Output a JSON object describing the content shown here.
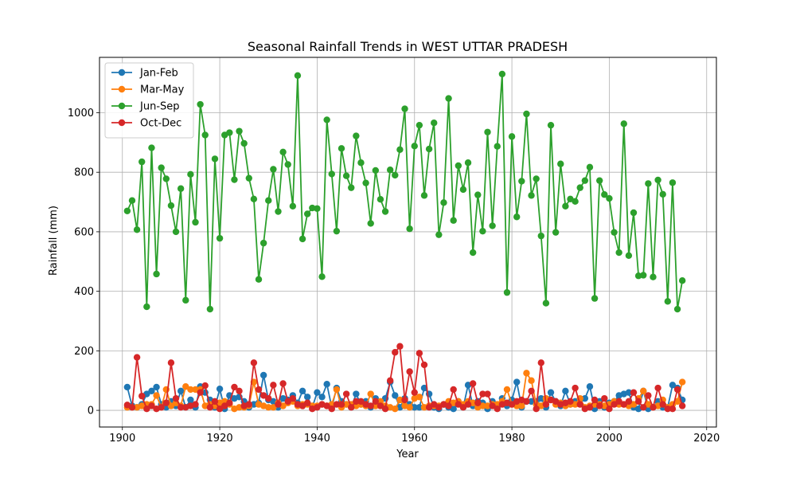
{
  "chart_data": {
    "type": "line",
    "title": "Seasonal Rainfall Trends in WEST UTTAR PRADESH",
    "xlabel": "Year",
    "ylabel": "Rainfall (mm)",
    "xlim": [
      1895.3,
      2022
    ],
    "ylim": [
      -56,
      1186
    ],
    "xticks": [
      1900,
      1920,
      1940,
      1960,
      1980,
      2000,
      2020
    ],
    "yticks": [
      0,
      200,
      400,
      600,
      800,
      1000
    ],
    "grid": true,
    "legend_position": "top-left",
    "x_start": 1901,
    "x_end": 2015,
    "series": [
      {
        "name": "Jan-Feb",
        "color": "#1f77b4",
        "values": [
          78,
          15,
          10,
          20,
          55,
          65,
          78,
          20,
          10,
          30,
          15,
          65,
          10,
          35,
          10,
          80,
          60,
          35,
          10,
          72,
          5,
          50,
          40,
          45,
          30,
          10,
          20,
          25,
          118,
          35,
          30,
          10,
          40,
          35,
          50,
          25,
          65,
          45,
          10,
          60,
          45,
          88,
          10,
          75,
          30,
          20,
          10,
          55,
          20,
          30,
          10,
          40,
          20,
          40,
          95,
          50,
          10,
          40,
          20,
          10,
          10,
          75,
          55,
          10,
          5,
          20,
          10,
          5,
          30,
          10,
          85,
          15,
          30,
          25,
          5,
          30,
          10,
          40,
          15,
          35,
          95,
          10,
          30,
          30,
          30,
          40,
          10,
          60,
          30,
          15,
          65,
          20,
          30,
          35,
          40,
          80,
          5,
          30,
          10,
          25,
          30,
          50,
          55,
          60,
          10,
          5,
          65,
          5,
          10,
          30,
          10,
          10,
          85,
          75,
          35
        ]
      },
      {
        "name": "Mar-May",
        "color": "#ff7f0e",
        "values": [
          10,
          10,
          10,
          15,
          20,
          20,
          50,
          10,
          70,
          15,
          25,
          15,
          80,
          70,
          70,
          70,
          15,
          20,
          15,
          25,
          30,
          20,
          5,
          10,
          10,
          15,
          95,
          20,
          15,
          10,
          10,
          25,
          15,
          25,
          30,
          15,
          20,
          20,
          15,
          15,
          20,
          15,
          20,
          70,
          10,
          20,
          20,
          15,
          20,
          15,
          55,
          15,
          30,
          15,
          10,
          5,
          35,
          15,
          10,
          40,
          45,
          10,
          15,
          15,
          15,
          20,
          30,
          25,
          30,
          20,
          30,
          25,
          10,
          15,
          15,
          20,
          20,
          30,
          70,
          20,
          15,
          15,
          125,
          100,
          20,
          15,
          40,
          35,
          20,
          25,
          15,
          20,
          20,
          40,
          10,
          15,
          20,
          20,
          15,
          20,
          30,
          20,
          20,
          15,
          20,
          40,
          65,
          20,
          10,
          15,
          35,
          10,
          20,
          30,
          95
        ]
      },
      {
        "name": "Jun-Sep",
        "color": "#2ca02c",
        "values": [
          670,
          705,
          607,
          835,
          348,
          882,
          458,
          815,
          778,
          688,
          600,
          745,
          370,
          793,
          632,
          1028,
          925,
          340,
          845,
          578,
          925,
          933,
          775,
          938,
          897,
          780,
          710,
          440,
          562,
          705,
          810,
          668,
          868,
          826,
          686,
          1125,
          576,
          660,
          680,
          678,
          449,
          976,
          794,
          602,
          880,
          788,
          748,
          922,
          832,
          764,
          628,
          806,
          709,
          668,
          808,
          790,
          876,
          1013,
          610,
          888,
          958,
          722,
          878,
          966,
          590,
          698,
          1048,
          638,
          822,
          742,
          832,
          530,
          724,
          602,
          935,
          620,
          887,
          1130,
          396,
          920,
          650,
          770,
          996,
          722,
          778,
          586,
          360,
          958,
          598,
          828,
          686,
          710,
          702,
          748,
          772,
          817,
          376,
          772,
          725,
          712,
          598,
          530,
          963,
          520,
          664,
          452,
          454,
          762,
          448,
          774,
          726,
          366,
          765,
          340,
          436
        ]
      },
      {
        "name": "Oct-Dec",
        "color": "#d62728",
        "values": [
          18,
          10,
          178,
          48,
          5,
          15,
          5,
          10,
          25,
          160,
          40,
          10,
          10,
          15,
          20,
          60,
          83,
          10,
          30,
          5,
          15,
          25,
          78,
          65,
          15,
          20,
          160,
          70,
          50,
          40,
          85,
          20,
          90,
          30,
          40,
          20,
          15,
          25,
          5,
          10,
          20,
          15,
          5,
          20,
          20,
          55,
          10,
          30,
          30,
          20,
          15,
          30,
          15,
          5,
          100,
          195,
          215,
          35,
          130,
          60,
          192,
          153,
          10,
          20,
          10,
          20,
          15,
          70,
          20,
          10,
          20,
          90,
          25,
          55,
          55,
          15,
          5,
          20,
          25,
          20,
          30,
          35,
          30,
          65,
          5,
          160,
          20,
          35,
          30,
          20,
          25,
          30,
          75,
          20,
          5,
          10,
          35,
          15,
          40,
          5,
          20,
          30,
          20,
          30,
          60,
          30,
          10,
          50,
          10,
          75,
          20,
          5,
          5,
          70,
          15
        ]
      }
    ]
  }
}
